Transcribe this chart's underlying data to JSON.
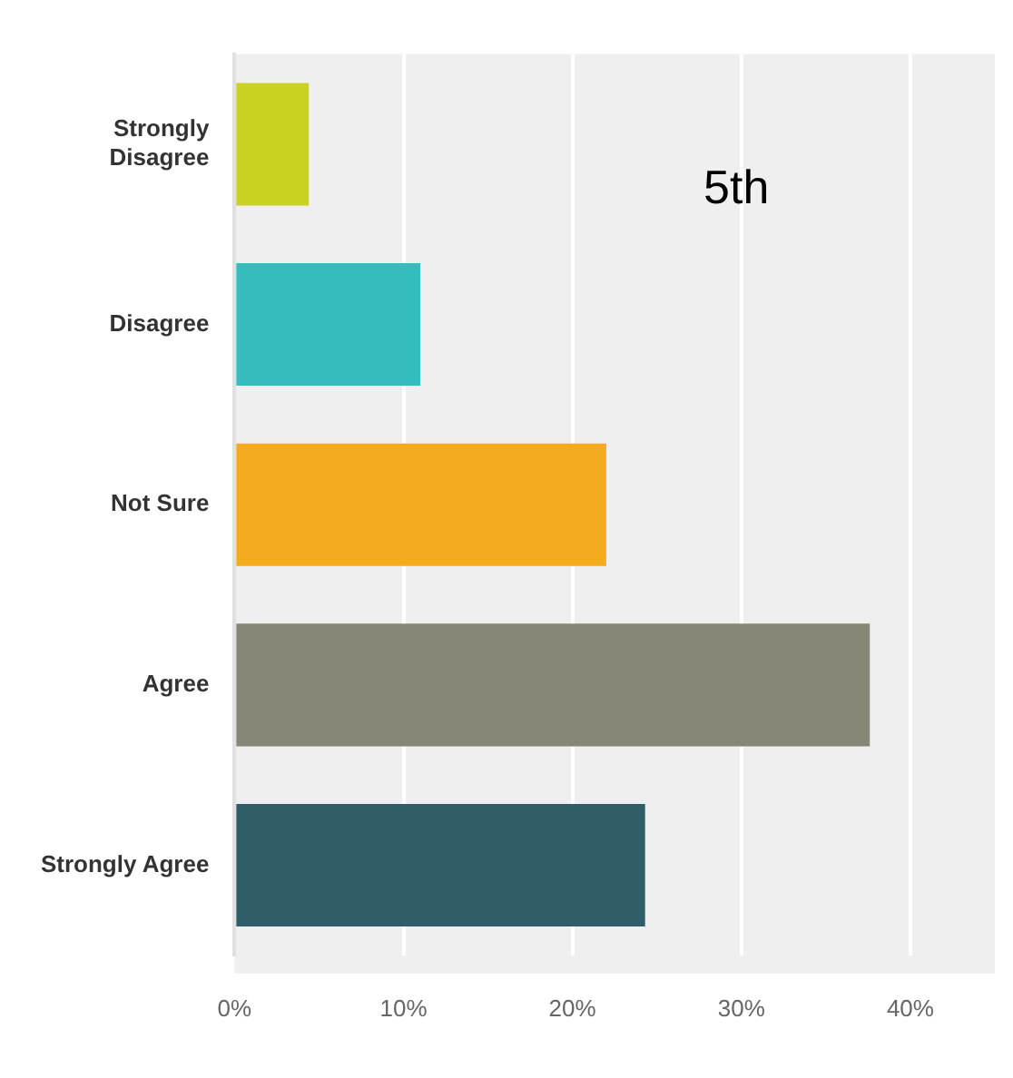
{
  "chart_data": {
    "type": "bar",
    "orientation": "horizontal",
    "categories": [
      "Strongly Disagree",
      "Disagree",
      "Not Sure",
      "Agree",
      "Strongly Agree"
    ],
    "values": [
      4.4,
      11.0,
      22.0,
      37.6,
      24.3
    ],
    "colors": [
      "#c9d121",
      "#35bcbc",
      "#f5ab1e",
      "#878677",
      "#2f5d68"
    ],
    "xlim": [
      0,
      45
    ],
    "xticks": [
      {
        "value": 0,
        "label": "0%"
      },
      {
        "value": 10,
        "label": "10%"
      },
      {
        "value": 20,
        "label": "20%"
      },
      {
        "value": 30,
        "label": "30%"
      },
      {
        "value": 40,
        "label": "40%"
      }
    ],
    "grid": "x",
    "annotations": [
      "5th"
    ]
  }
}
